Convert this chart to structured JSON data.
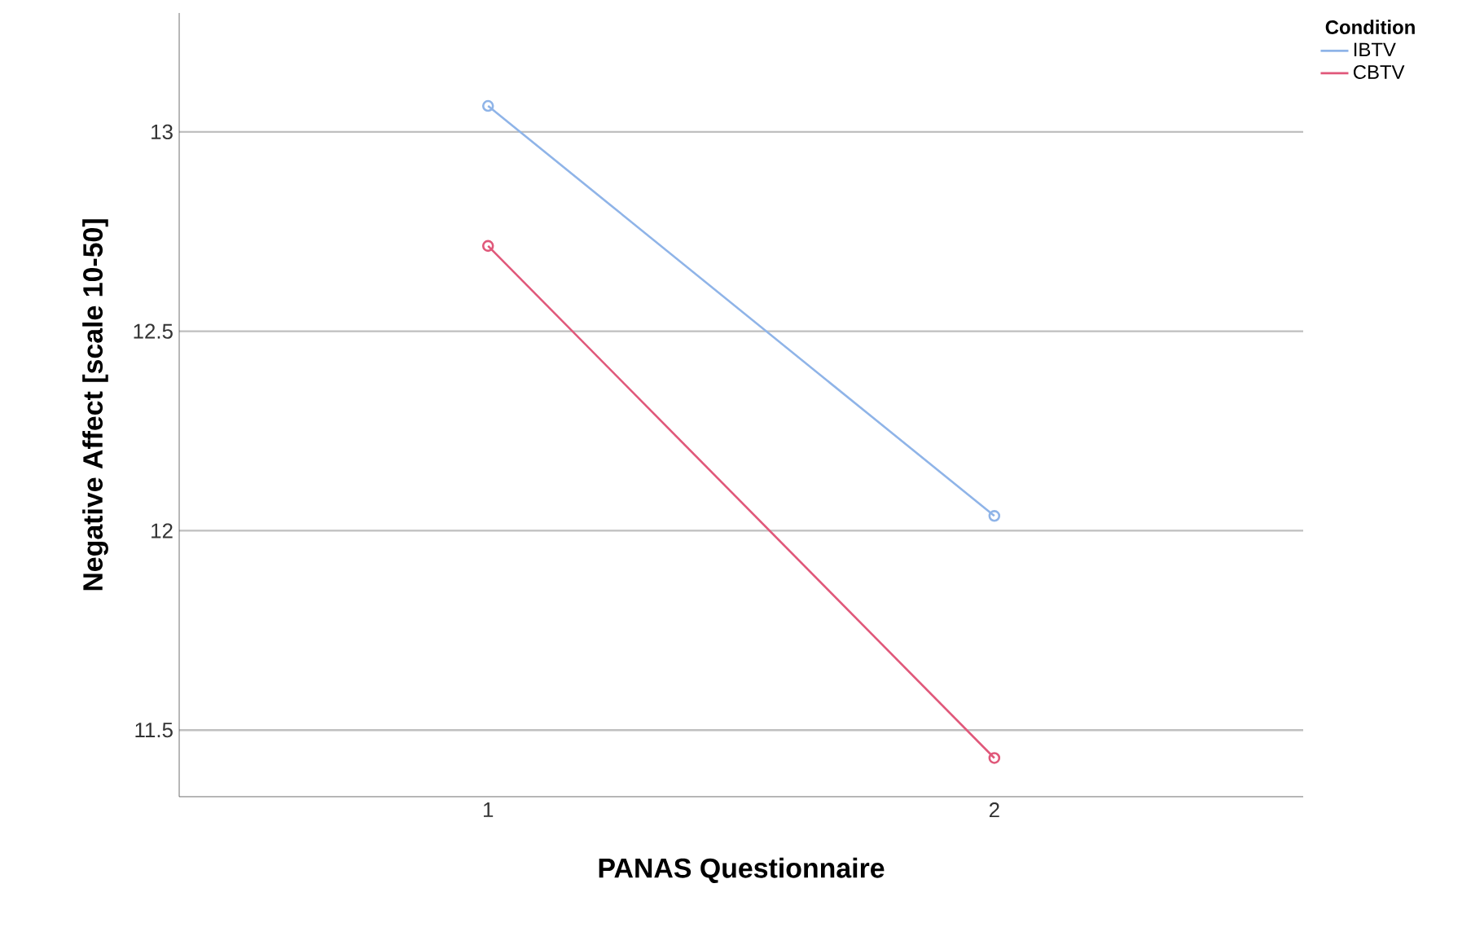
{
  "chart_data": {
    "type": "line",
    "xlabel": "PANAS Questionnaire",
    "ylabel": "Negative Affect [scale 10-50]",
    "legend_title": "Condition",
    "categories": [
      "1",
      "2"
    ],
    "series": [
      {
        "name": "IBTV",
        "color": "#8fb4e8",
        "values": [
          13.065,
          12.037
        ]
      },
      {
        "name": "CBTV",
        "color": "#e0587a",
        "values": [
          12.714,
          11.43
        ]
      }
    ],
    "ylim": [
      11.333,
      13.298
    ],
    "yticks": [
      11.5,
      12,
      12.5,
      13
    ],
    "grid": "y",
    "legend": "right",
    "marker": "circle",
    "line_style": "solid"
  }
}
